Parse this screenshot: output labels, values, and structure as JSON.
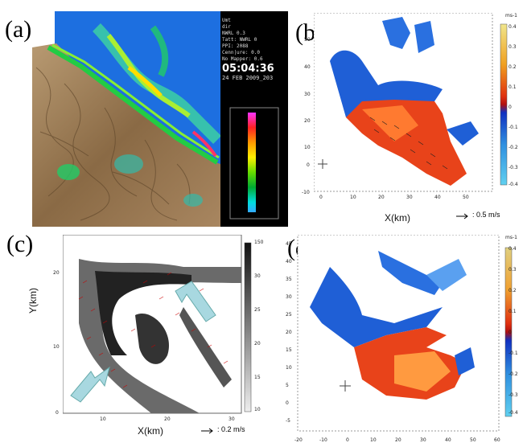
{
  "panels": {
    "a": {
      "label": "(a)",
      "radar_info": {
        "lines": [
          "Umt",
          "dir",
          "NWRL 0.3",
          "Tatt: NWRL 0",
          "PPI: 2088",
          "Cenn|ure: 0.0",
          "No Mapper: 0.6"
        ],
        "time": "05:04:36",
        "date": "24 FEB 2009_203"
      },
      "colorbar_ticks": [
        "",
        "",
        "",
        "",
        "",
        "",
        "",
        "",
        "",
        "",
        "",
        "",
        "",
        "",
        "",
        ""
      ]
    },
    "b": {
      "label": "(b)",
      "unit": "ms-1",
      "colorbar_ticks": [
        "0.4",
        "0.3",
        "0.2",
        "0.1",
        "0",
        "-0.1",
        "-0.2",
        "-0.3",
        "-0.4"
      ],
      "y_ticks": [
        "50",
        "40",
        "30",
        "20",
        "10",
        "0",
        "-10"
      ],
      "x_ticks": [
        "0",
        "10",
        "20",
        "30",
        "40",
        "50"
      ],
      "xlabel": "X(km)",
      "scale_text": ": 0.5 m/s"
    },
    "c": {
      "label": "(c)",
      "ylabel": "Y(km)",
      "xlabel": "X(km)",
      "y_ticks": [
        "20",
        "10",
        "0"
      ],
      "x_ticks": [
        "10",
        "20",
        "30"
      ],
      "colorbar_ticks": [
        "150",
        "30",
        "25",
        "20",
        "15",
        "10"
      ],
      "scale_text": ": 0.2 m/s"
    },
    "d": {
      "label": "(d)",
      "unit": "ms-1",
      "y_ticks": [
        "45",
        "40",
        "35",
        "30",
        "25",
        "20",
        "15",
        "10",
        "5",
        "0",
        "-5"
      ],
      "x_ticks": [
        "-20",
        "-10",
        "0",
        "10",
        "20",
        "30",
        "40",
        "50",
        "60"
      ],
      "colorbar_ticks": [
        "0.4",
        "0.3",
        "0.2",
        "0.1",
        "0",
        "-0.1",
        "-0.2",
        "-0.3",
        "-0.4"
      ]
    }
  },
  "colors": {
    "warm": "#e8431a",
    "cool": "#1f5fd6",
    "terrain": "#9a7b55",
    "sea": "#1d6fe0"
  }
}
